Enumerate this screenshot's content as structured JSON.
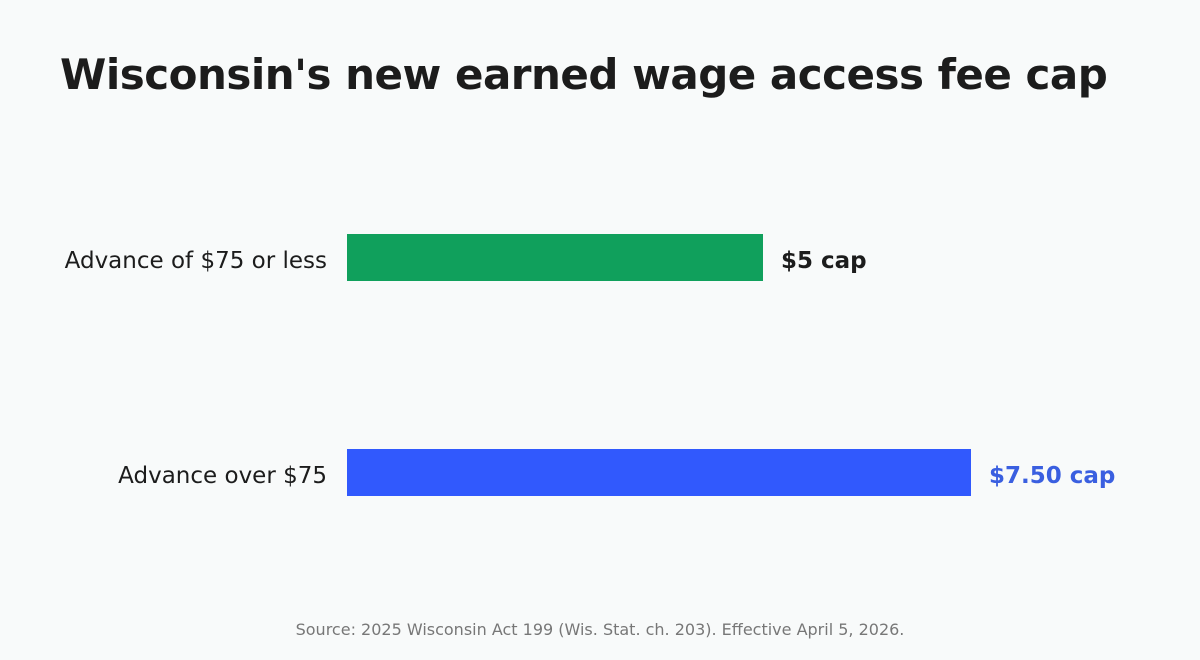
{
  "title": "Wisconsin's new earned wage access fee cap",
  "source": "Source: 2025 Wisconsin Act 199 (Wis. Stat. ch. 203). Effective April 5, 2026.",
  "chart_data": {
    "type": "bar",
    "orientation": "horizontal",
    "categories": [
      "Advance of $75 or less",
      "Advance over $75"
    ],
    "values": [
      5,
      7.5
    ],
    "value_labels": [
      "$5 cap",
      "$7.50 cap"
    ],
    "colors": [
      "#10a05c",
      "#3159fd"
    ],
    "label_colors": [
      "#1c1c1c",
      "#3a5fe0"
    ],
    "unit": "$",
    "xlim": [
      0,
      7.5
    ],
    "grid": false,
    "legend": "none"
  }
}
